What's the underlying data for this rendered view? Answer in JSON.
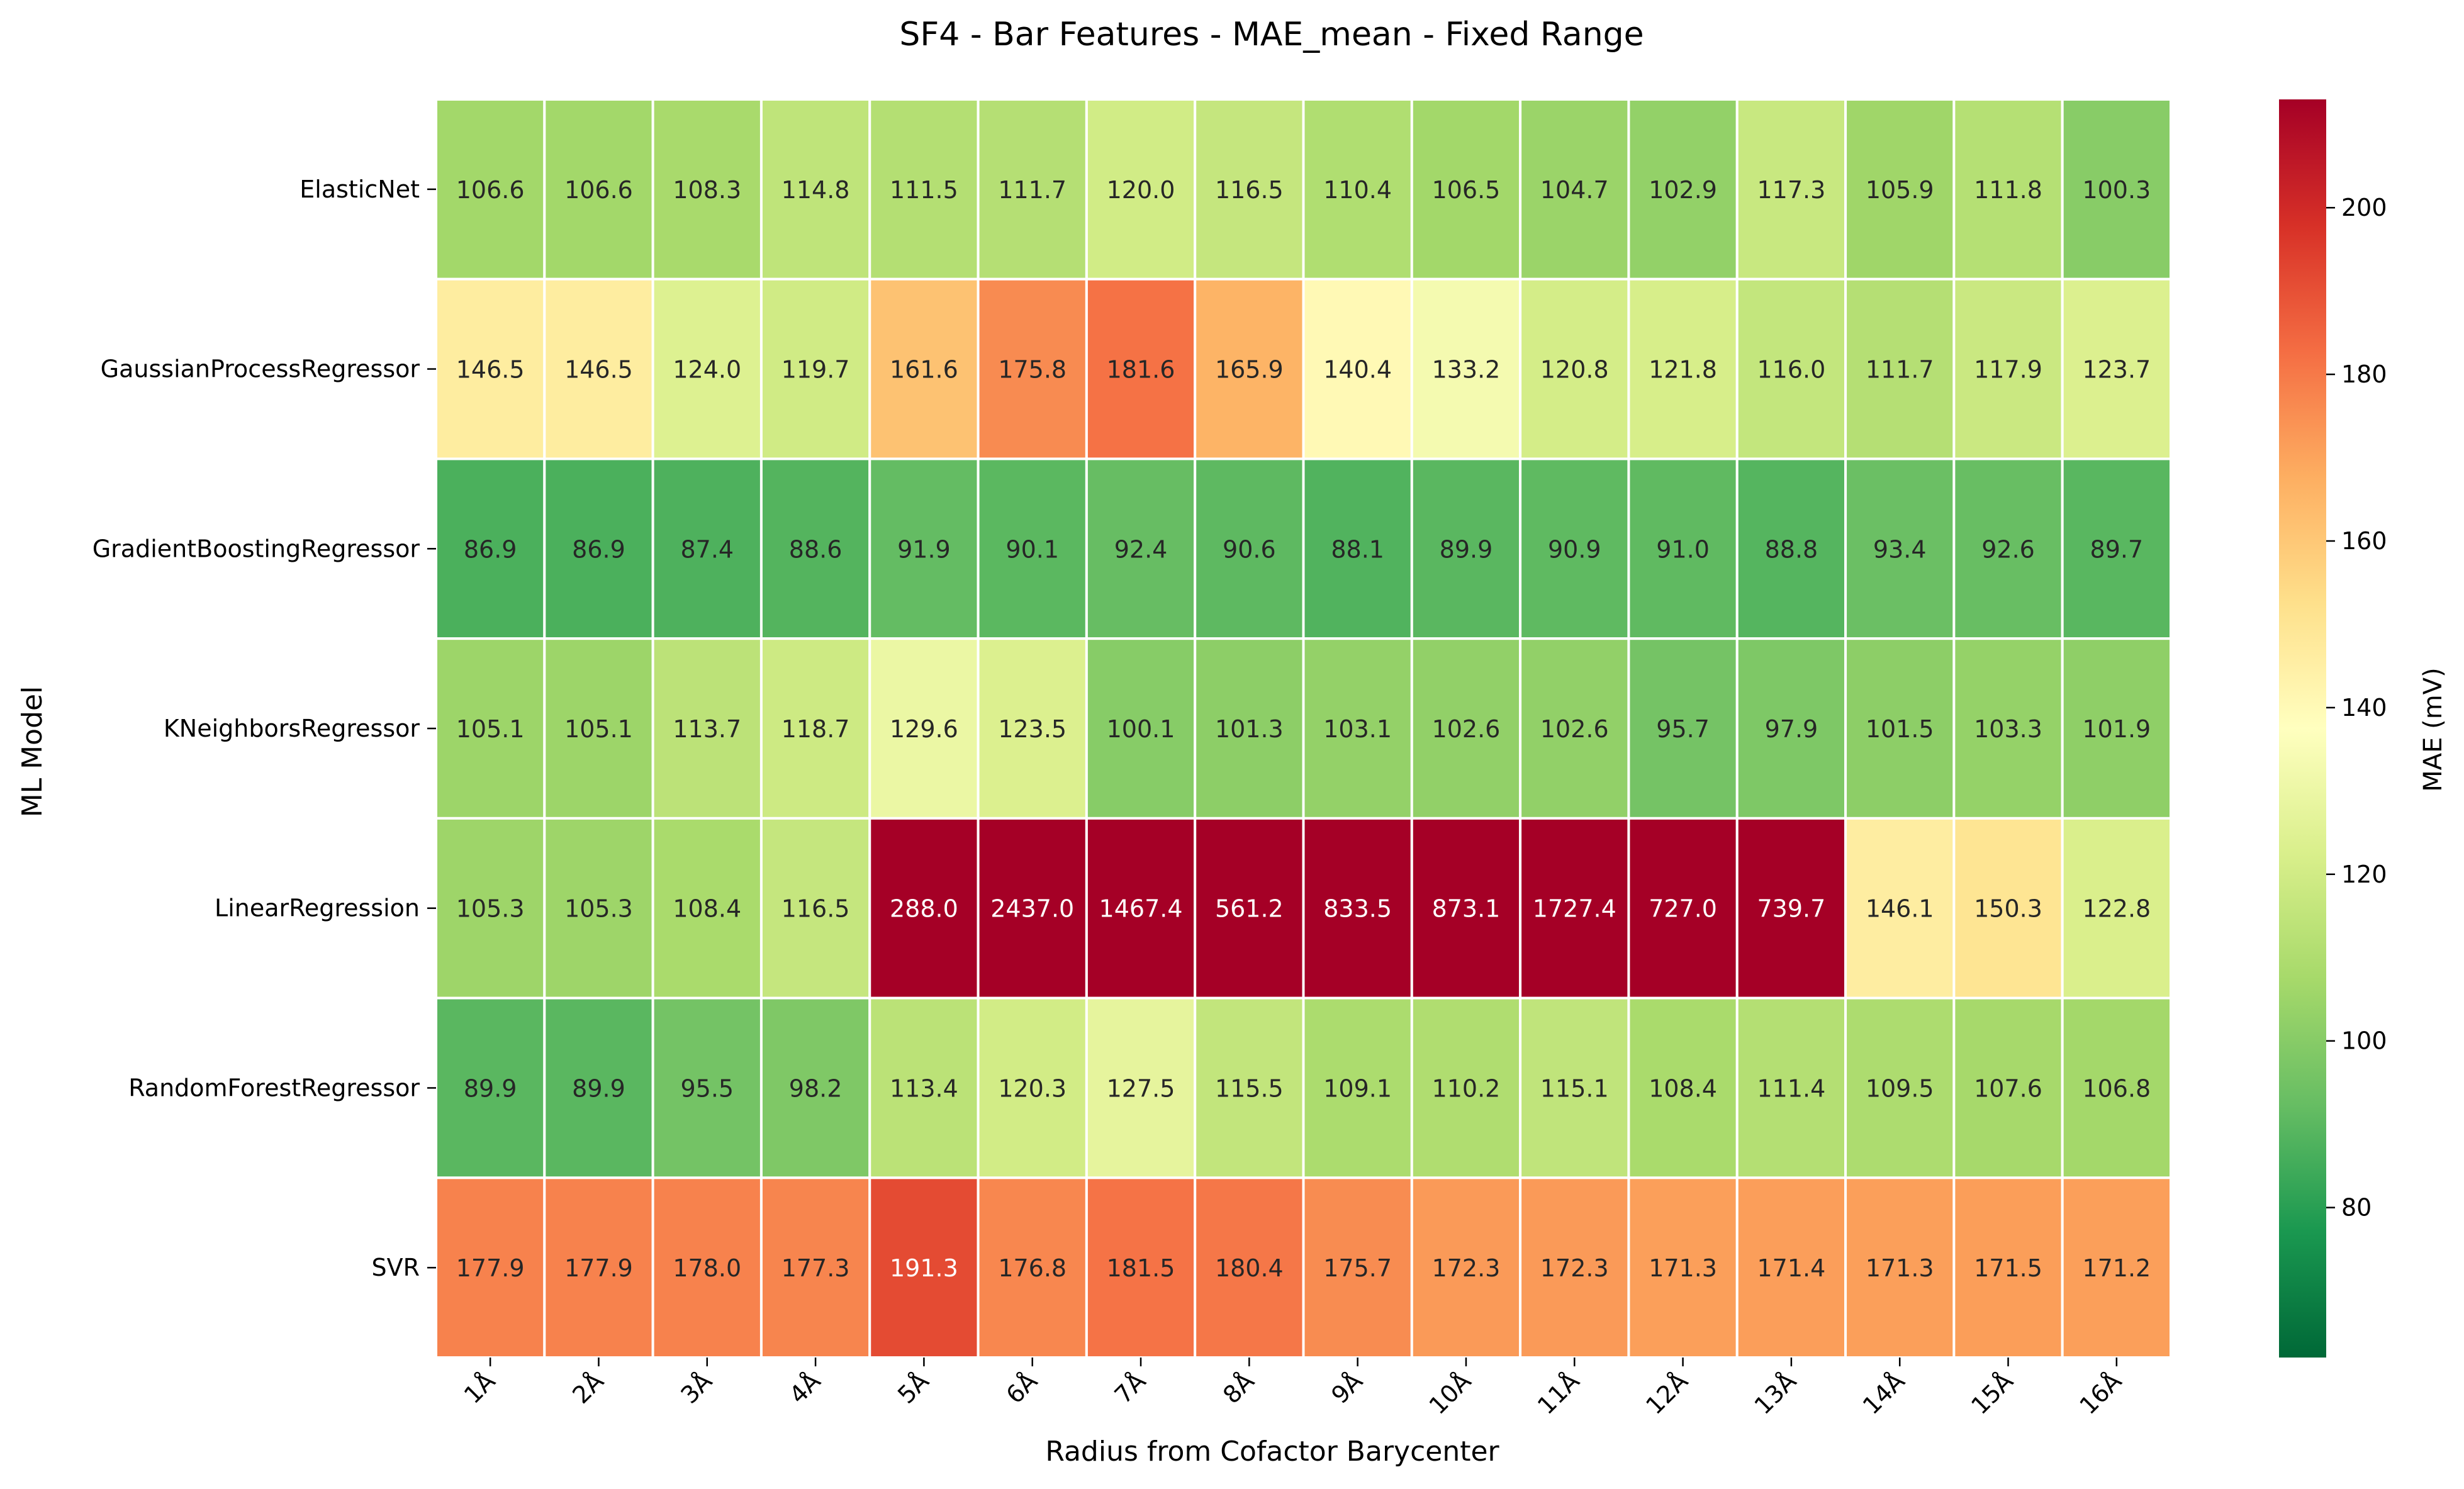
{
  "chart_data": {
    "type": "heatmap",
    "title": "SF4 - Bar Features - MAE_mean - Fixed Range",
    "xlabel": "Radius from Cofactor Barycenter",
    "ylabel": "ML Model",
    "x_categories": [
      "1Å",
      "2Å",
      "3Å",
      "4Å",
      "5Å",
      "6Å",
      "7Å",
      "8Å",
      "9Å",
      "10Å",
      "11Å",
      "12Å",
      "13Å",
      "14Å",
      "15Å",
      "16Å"
    ],
    "y_categories": [
      "ElasticNet",
      "GaussianProcessRegressor",
      "GradientBoostingRegressor",
      "KNeighborsRegressor",
      "LinearRegression",
      "RandomForestRegressor",
      "SVR"
    ],
    "values": [
      [
        106.6,
        106.6,
        108.3,
        114.8,
        111.5,
        111.7,
        120.0,
        116.5,
        110.4,
        106.5,
        104.7,
        102.9,
        117.3,
        105.9,
        111.8,
        100.3
      ],
      [
        146.5,
        146.5,
        124.0,
        119.7,
        161.6,
        175.8,
        181.6,
        165.9,
        140.4,
        133.2,
        120.8,
        121.8,
        116.0,
        111.7,
        117.9,
        123.7
      ],
      [
        86.9,
        86.9,
        87.4,
        88.6,
        91.9,
        90.1,
        92.4,
        90.6,
        88.1,
        89.9,
        90.9,
        91.0,
        88.8,
        93.4,
        92.6,
        89.7
      ],
      [
        105.1,
        105.1,
        113.7,
        118.7,
        129.6,
        123.5,
        100.1,
        101.3,
        103.1,
        102.6,
        102.6,
        95.7,
        97.9,
        101.5,
        103.3,
        101.9
      ],
      [
        105.3,
        105.3,
        108.4,
        116.5,
        288.0,
        2437.0,
        1467.4,
        561.2,
        833.5,
        873.1,
        1727.4,
        727.0,
        739.7,
        146.1,
        150.3,
        122.8
      ],
      [
        89.9,
        89.9,
        95.5,
        98.2,
        113.4,
        120.3,
        127.5,
        115.5,
        109.1,
        110.2,
        115.1,
        108.4,
        111.4,
        109.5,
        107.6,
        106.8
      ],
      [
        177.9,
        177.9,
        178.0,
        177.3,
        191.3,
        176.8,
        181.5,
        180.4,
        175.7,
        172.3,
        172.3,
        171.3,
        171.4,
        171.3,
        171.5,
        171.2
      ]
    ],
    "colorbar": {
      "label": "MAE (mV)",
      "vmin": 62,
      "vmax": 213,
      "ticks": [
        80,
        100,
        120,
        140,
        160,
        180,
        200
      ],
      "colormap": "RdYlGn_r"
    }
  }
}
